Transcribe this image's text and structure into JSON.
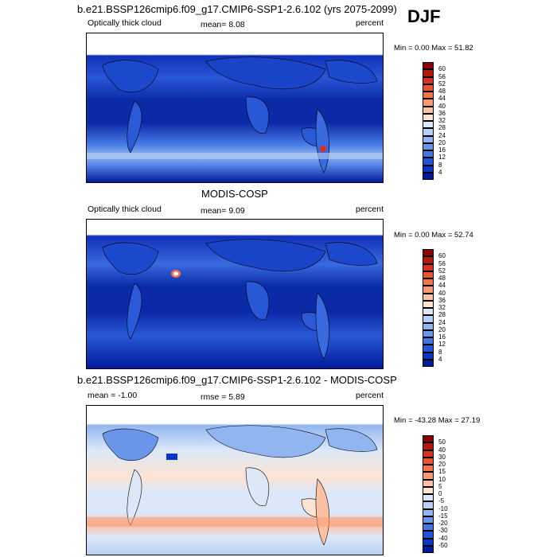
{
  "season": "DJF",
  "panels": [
    {
      "title": "b.e21.BSSP126cmip6.f09_g17.CMIP6-SSP1-2.6.102 (yrs 2075-2099)",
      "left_label": "Optically thick cloud",
      "center_label": "mean=  8.08",
      "right_label": "percent",
      "minmax": "Min =   0.00 Max =  51.82",
      "colorbar_labels": [
        "60",
        "56",
        "52",
        "48",
        "44",
        "40",
        "36",
        "32",
        "28",
        "24",
        "20",
        "16",
        "12",
        "8",
        "4"
      ]
    },
    {
      "title": "MODIS-COSP",
      "left_label": "Optically thick cloud",
      "center_label": "mean=  9.09",
      "right_label": "percent",
      "minmax": "Min =   0.00 Max =  52.74",
      "colorbar_labels": [
        "60",
        "56",
        "52",
        "48",
        "44",
        "40",
        "36",
        "32",
        "28",
        "24",
        "20",
        "16",
        "12",
        "8",
        "4"
      ]
    },
    {
      "title": "b.e21.BSSP126cmip6.f09_g17.CMIP6-SSP1-2.6.102 - MODIS-COSP",
      "left_label": "mean =  -1.00",
      "center_label": "rmse =   5.89",
      "right_label": "percent",
      "minmax": "Min = -43.28 Max =  27.19",
      "colorbar_labels": [
        "50",
        "40",
        "30",
        "20",
        "15",
        "10",
        "5",
        "0",
        "-5",
        "-10",
        "-15",
        "-20",
        "-30",
        "-40",
        "-50"
      ]
    }
  ],
  "colors": {
    "seq": [
      "#8b0000",
      "#b2180c",
      "#d73220",
      "#e8542c",
      "#f4744a",
      "#f99a72",
      "#fcc1a2",
      "#fde3d2",
      "#dce8f8",
      "#b8d0f4",
      "#91b5f0",
      "#6a96ea",
      "#4476e2",
      "#2055d8",
      "#0a36c4",
      "#001a9c"
    ],
    "div": [
      "#8b0000",
      "#b2180c",
      "#d73220",
      "#e8542c",
      "#f4744a",
      "#f99a72",
      "#fcc1a2",
      "#fde3d2",
      "#dce8f8",
      "#b8d0f4",
      "#91b5f0",
      "#6a96ea",
      "#4476e2",
      "#2055d8",
      "#0a36c4",
      "#001a9c"
    ]
  }
}
